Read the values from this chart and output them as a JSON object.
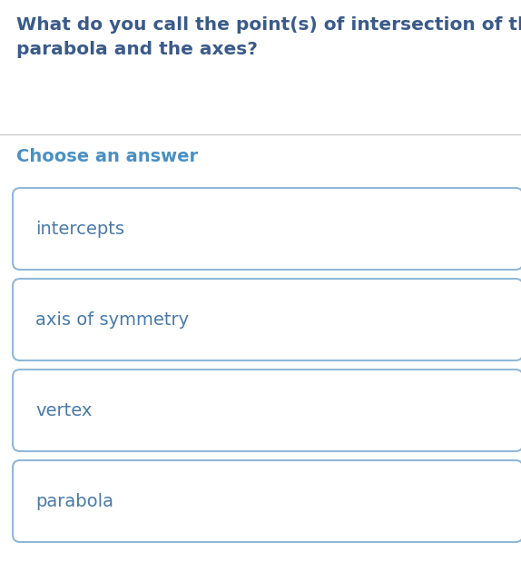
{
  "question": "What do you call the point(s) of intersection of the\nparabola and the axes?",
  "section_label": "Choose an answer",
  "choices": [
    "intercepts",
    "axis of symmetry",
    "vertex",
    "parabola"
  ],
  "bg_color": "#ffffff",
  "question_color": "#3a5a8a",
  "section_label_color": "#4a90c4",
  "choice_text_color": "#4a7aaa",
  "box_border_color": "#90b8d8",
  "box_bg_color": "#ffffff",
  "divider_color": "#cccccc",
  "question_fontsize": 14.5,
  "section_fontsize": 14.0,
  "choice_fontsize": 14.0,
  "fig_width": 5.74,
  "fig_height": 6.19,
  "dpi": 100
}
